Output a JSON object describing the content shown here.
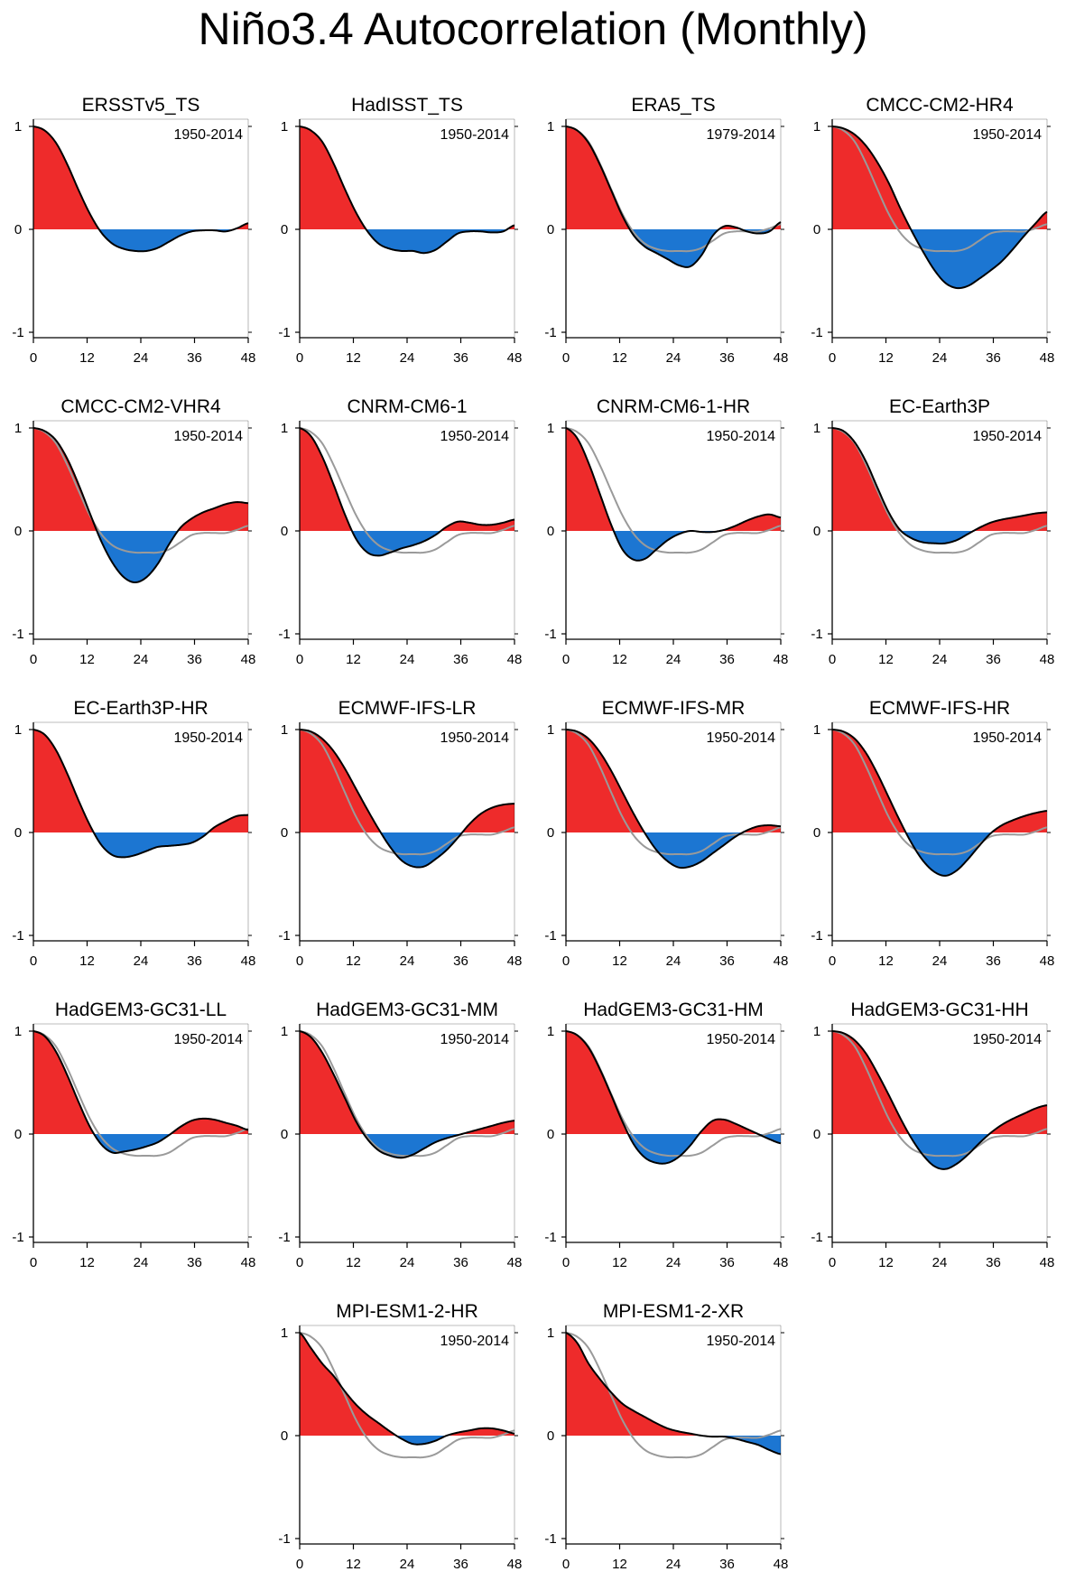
{
  "title": "Niño3.4 Autocorrelation (Monthly)",
  "chart_data": {
    "type": "area",
    "x_ticks": [
      0,
      12,
      24,
      36,
      48
    ],
    "y_ticks": [
      1,
      0,
      -1
    ],
    "xlim": [
      0,
      48
    ],
    "ylim": [
      -1,
      1
    ],
    "positive_color": "#ee2b2b",
    "negative_color": "#1c76d2",
    "line_color": "#000000",
    "reference_color": "#9a9a9a",
    "panels": [
      {
        "name": "ERSSTv5_TS",
        "period": "1950-2014",
        "show_reference": false,
        "values": [
          1.0,
          0.96,
          0.84,
          0.63,
          0.38,
          0.15,
          -0.03,
          -0.14,
          -0.19,
          -0.21,
          -0.21,
          -0.18,
          -0.12,
          -0.06,
          -0.02,
          -0.01,
          -0.01,
          -0.02,
          0.01,
          0.06
        ]
      },
      {
        "name": "HadISST_TS",
        "period": "1950-2014",
        "show_reference": false,
        "values": [
          1.0,
          0.96,
          0.85,
          0.64,
          0.39,
          0.16,
          -0.02,
          -0.14,
          -0.19,
          -0.21,
          -0.21,
          -0.23,
          -0.2,
          -0.12,
          -0.04,
          -0.02,
          -0.02,
          -0.03,
          -0.02,
          0.04
        ]
      },
      {
        "name": "ERA5_TS",
        "period": "1979-2014",
        "show_reference": true,
        "values": [
          1.0,
          0.96,
          0.84,
          0.63,
          0.38,
          0.13,
          -0.06,
          -0.17,
          -0.23,
          -0.29,
          -0.35,
          -0.36,
          -0.25,
          -0.06,
          0.03,
          0.02,
          -0.02,
          -0.04,
          -0.02,
          0.07
        ]
      },
      {
        "name": "CMCC-CM2-HR4",
        "period": "1950-2014",
        "show_reference": true,
        "values": [
          1.0,
          0.98,
          0.92,
          0.81,
          0.65,
          0.45,
          0.21,
          -0.01,
          -0.21,
          -0.39,
          -0.52,
          -0.57,
          -0.55,
          -0.48,
          -0.4,
          -0.31,
          -0.19,
          -0.06,
          0.06,
          0.17
        ]
      },
      {
        "name": "CMCC-CM2-VHR4",
        "period": "1950-2014",
        "show_reference": true,
        "values": [
          1.0,
          0.97,
          0.88,
          0.7,
          0.45,
          0.17,
          -0.1,
          -0.31,
          -0.45,
          -0.5,
          -0.45,
          -0.32,
          -0.13,
          0.03,
          0.12,
          0.18,
          0.22,
          0.26,
          0.28,
          0.27
        ]
      },
      {
        "name": "CNRM-CM6-1",
        "period": "1950-2014",
        "show_reference": true,
        "values": [
          1.0,
          0.92,
          0.72,
          0.45,
          0.16,
          -0.08,
          -0.21,
          -0.24,
          -0.21,
          -0.17,
          -0.14,
          -0.1,
          -0.04,
          0.04,
          0.09,
          0.08,
          0.06,
          0.06,
          0.08,
          0.11
        ]
      },
      {
        "name": "CNRM-CM6-1-HR",
        "period": "1950-2014",
        "show_reference": true,
        "values": [
          1.0,
          0.9,
          0.66,
          0.36,
          0.06,
          -0.18,
          -0.28,
          -0.27,
          -0.18,
          -0.09,
          -0.03,
          0.0,
          -0.01,
          -0.01,
          0.01,
          0.05,
          0.1,
          0.14,
          0.16,
          0.13
        ]
      },
      {
        "name": "EC-Earth3P",
        "period": "1950-2014",
        "show_reference": true,
        "values": [
          1.0,
          0.97,
          0.86,
          0.67,
          0.42,
          0.18,
          0.01,
          -0.07,
          -0.11,
          -0.12,
          -0.12,
          -0.09,
          -0.03,
          0.03,
          0.08,
          0.11,
          0.13,
          0.15,
          0.17,
          0.18
        ]
      },
      {
        "name": "EC-Earth3P-HR",
        "period": "1950-2014",
        "show_reference": false,
        "values": [
          1.0,
          0.95,
          0.8,
          0.57,
          0.31,
          0.07,
          -0.12,
          -0.22,
          -0.24,
          -0.22,
          -0.18,
          -0.14,
          -0.13,
          -0.12,
          -0.1,
          -0.04,
          0.05,
          0.11,
          0.16,
          0.17
        ]
      },
      {
        "name": "ECMWF-IFS-LR",
        "period": "1950-2014",
        "show_reference": true,
        "values": [
          1.0,
          0.98,
          0.91,
          0.79,
          0.62,
          0.42,
          0.22,
          0.03,
          -0.14,
          -0.27,
          -0.33,
          -0.33,
          -0.26,
          -0.17,
          -0.05,
          0.08,
          0.18,
          0.24,
          0.27,
          0.28
        ]
      },
      {
        "name": "ECMWF-IFS-MR",
        "period": "1950-2014",
        "show_reference": true,
        "values": [
          1.0,
          0.98,
          0.91,
          0.78,
          0.6,
          0.39,
          0.18,
          -0.01,
          -0.17,
          -0.28,
          -0.34,
          -0.33,
          -0.28,
          -0.2,
          -0.12,
          -0.04,
          0.02,
          0.06,
          0.07,
          0.06
        ]
      },
      {
        "name": "ECMWF-IFS-HR",
        "period": "1950-2014",
        "show_reference": true,
        "values": [
          1.0,
          0.98,
          0.91,
          0.77,
          0.57,
          0.34,
          0.11,
          -0.1,
          -0.27,
          -0.38,
          -0.42,
          -0.37,
          -0.26,
          -0.13,
          -0.01,
          0.07,
          0.12,
          0.16,
          0.19,
          0.21
        ]
      },
      {
        "name": "HadGEM3-GC31-LL",
        "period": "1950-2014",
        "show_reference": true,
        "values": [
          1.0,
          0.95,
          0.8,
          0.57,
          0.31,
          0.07,
          -0.1,
          -0.18,
          -0.17,
          -0.15,
          -0.12,
          -0.08,
          -0.01,
          0.07,
          0.13,
          0.15,
          0.14,
          0.11,
          0.08,
          0.04
        ]
      },
      {
        "name": "HadGEM3-GC31-MM",
        "period": "1950-2014",
        "show_reference": true,
        "values": [
          1.0,
          0.94,
          0.79,
          0.58,
          0.35,
          0.12,
          -0.05,
          -0.16,
          -0.21,
          -0.23,
          -0.2,
          -0.14,
          -0.08,
          -0.04,
          -0.01,
          0.02,
          0.05,
          0.08,
          0.11,
          0.13
        ]
      },
      {
        "name": "HadGEM3-GC31-HM",
        "period": "1950-2014",
        "show_reference": true,
        "values": [
          1.0,
          0.96,
          0.84,
          0.63,
          0.38,
          0.12,
          -0.1,
          -0.23,
          -0.28,
          -0.28,
          -0.22,
          -0.11,
          0.03,
          0.13,
          0.14,
          0.1,
          0.05,
          0.0,
          -0.05,
          -0.09
        ]
      },
      {
        "name": "HadGEM3-GC31-HH",
        "period": "1950-2014",
        "show_reference": true,
        "values": [
          1.0,
          0.98,
          0.91,
          0.78,
          0.59,
          0.38,
          0.16,
          -0.04,
          -0.2,
          -0.31,
          -0.34,
          -0.29,
          -0.2,
          -0.09,
          0.01,
          0.09,
          0.15,
          0.2,
          0.25,
          0.28
        ]
      },
      {
        "name": "MPI-ESM1-2-HR",
        "period": "1950-2014",
        "show_reference": true,
        "values": [
          1.0,
          0.85,
          0.7,
          0.58,
          0.43,
          0.3,
          0.2,
          0.12,
          0.04,
          -0.03,
          -0.08,
          -0.08,
          -0.05,
          0.0,
          0.03,
          0.05,
          0.07,
          0.07,
          0.05,
          0.02
        ]
      },
      {
        "name": "MPI-ESM1-2-XR",
        "period": "1950-2014",
        "show_reference": true,
        "values": [
          1.0,
          0.9,
          0.7,
          0.55,
          0.42,
          0.31,
          0.24,
          0.18,
          0.12,
          0.07,
          0.04,
          0.02,
          0.0,
          -0.01,
          -0.01,
          -0.03,
          -0.06,
          -0.09,
          -0.14,
          -0.18
        ]
      }
    ],
    "reference_values": [
      1.0,
      0.96,
      0.85,
      0.64,
      0.39,
      0.15,
      -0.03,
      -0.14,
      -0.19,
      -0.21,
      -0.21,
      -0.21,
      -0.18,
      -0.11,
      -0.04,
      -0.02,
      -0.02,
      -0.02,
      0.01,
      0.05
    ]
  }
}
